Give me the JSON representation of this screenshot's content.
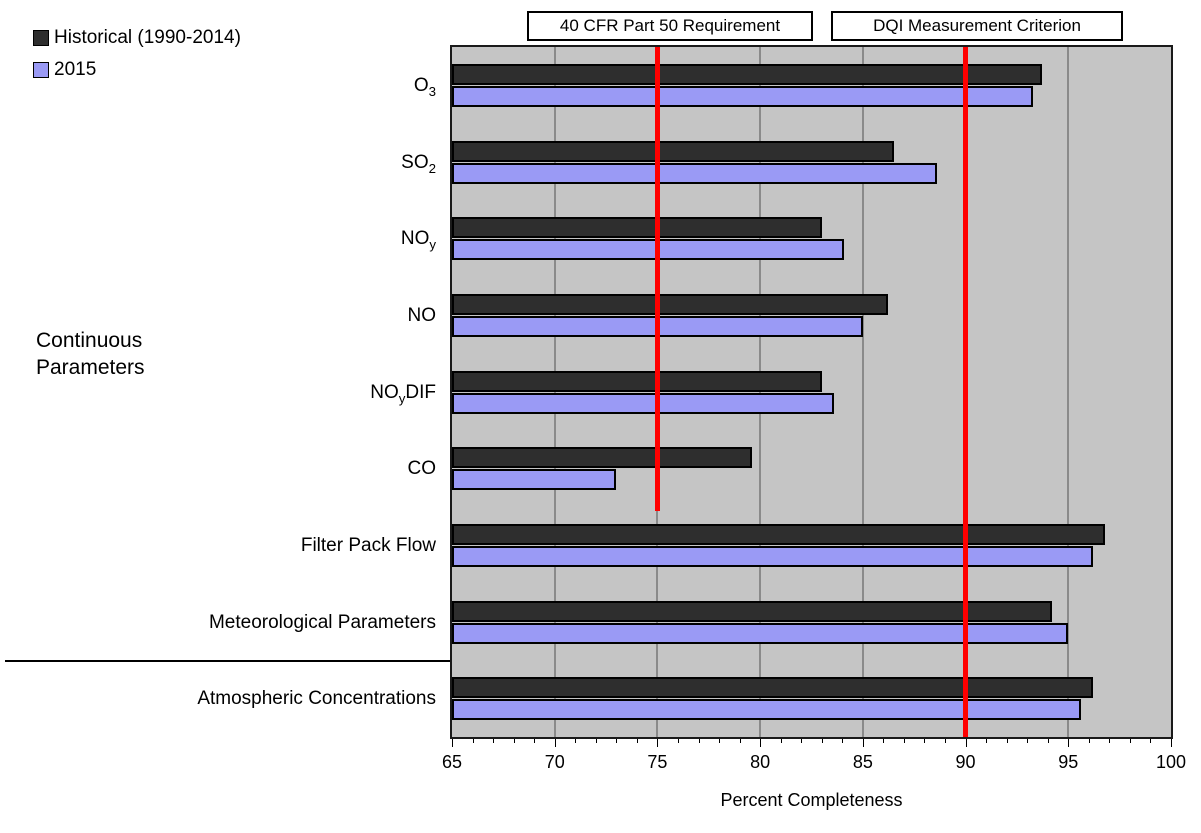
{
  "chart_data": {
    "type": "bar",
    "orientation": "horizontal",
    "xlabel": "Percent Completeness",
    "x_min": 65,
    "x_max": 100,
    "x_major_ticks": [
      65,
      70,
      75,
      80,
      85,
      90,
      95,
      100
    ],
    "x_minor_tick_step": 1,
    "x_gridlines": [
      70,
      75,
      80,
      85,
      90,
      95
    ],
    "grid": "vertical-major",
    "legend_position": "top-left",
    "plot_background": "#c5c5c5",
    "gridline_color": "#8a8a8a",
    "categories": [
      {
        "name": "O3",
        "label_parts": [
          {
            "t": "O"
          },
          {
            "t": "3",
            "sub": true
          }
        ]
      },
      {
        "name": "SO2",
        "label_parts": [
          {
            "t": "SO"
          },
          {
            "t": "2",
            "sub": true
          }
        ]
      },
      {
        "name": "NOy",
        "label_parts": [
          {
            "t": "NO"
          },
          {
            "t": "y",
            "sub": true
          }
        ]
      },
      {
        "name": "NO",
        "label_parts": [
          {
            "t": "NO"
          }
        ]
      },
      {
        "name": "NOyDIF",
        "label_parts": [
          {
            "t": "NO"
          },
          {
            "t": "y",
            "sub": true
          },
          {
            "t": "DIF"
          }
        ]
      },
      {
        "name": "CO",
        "label_parts": [
          {
            "t": "CO"
          }
        ]
      },
      {
        "name": "Filter Pack Flow",
        "label_parts": [
          {
            "t": "Filter Pack Flow"
          }
        ]
      },
      {
        "name": "Meteorological Parameters",
        "label_parts": [
          {
            "t": "Meteorological Parameters"
          }
        ]
      },
      {
        "name": "Atmospheric Concentrations",
        "label_parts": [
          {
            "t": "Atmospheric Concentrations"
          }
        ]
      }
    ],
    "series": [
      {
        "name": "Historical (1990-2014)",
        "color": "#2e2e2e",
        "values": [
          93.7,
          86.5,
          83.0,
          86.2,
          83.0,
          79.6,
          96.8,
          94.2,
          96.2
        ]
      },
      {
        "name": "2015",
        "color": "#9a9af5",
        "values": [
          93.3,
          88.6,
          84.1,
          85.0,
          83.6,
          73.0,
          96.2,
          95.0,
          95.6
        ]
      }
    ],
    "reference_lines": [
      {
        "label": "40 CFR Part 50 Requirement",
        "value": 75,
        "color": "#ff0000",
        "extent": "partial"
      },
      {
        "label": "DQI Measurement Criterion",
        "value": 90,
        "color": "#ff0000",
        "extent": "full"
      }
    ]
  },
  "legend": {
    "items": [
      {
        "label": "Historical (1990-2014)",
        "color": "#2e2e2e"
      },
      {
        "label": "2015",
        "color": "#9a9af5"
      }
    ]
  },
  "annotations": {
    "group_label_line1": "Continuous",
    "group_label_line2": "Parameters"
  }
}
